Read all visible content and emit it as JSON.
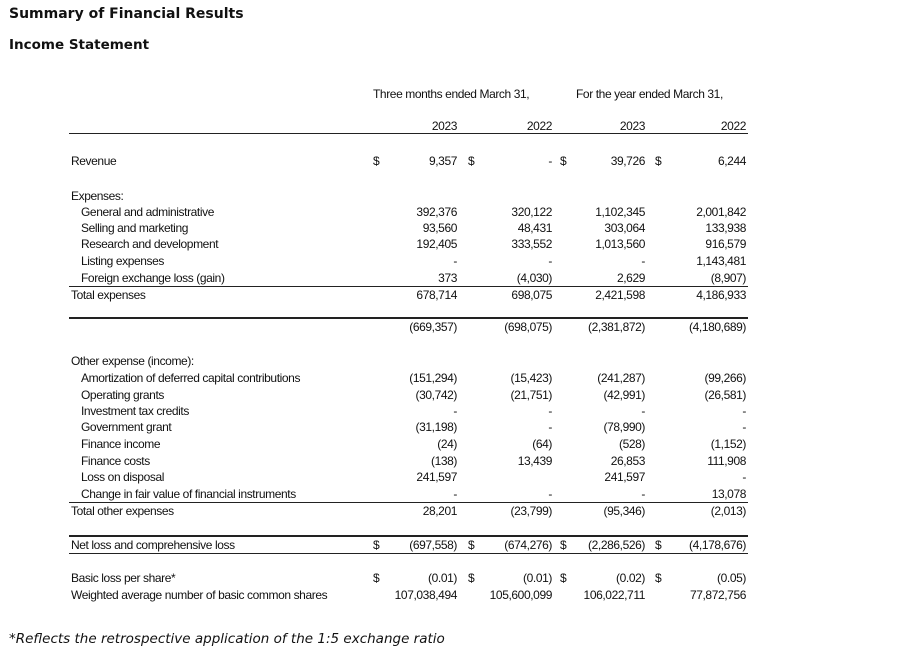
{
  "title": "Summary of Financial Results",
  "subtitle": "Income Statement",
  "footnote": "*Reflects the retrospective application of the 1:5 exchange ratio",
  "headers": {
    "group1": "Three months ended March 31,",
    "group2": "For the year ended March 31,",
    "years": [
      "2023",
      "2022",
      "2023",
      "2022"
    ]
  },
  "rows": [
    {
      "label": "Revenue",
      "indent": false,
      "dollar": true,
      "values": [
        "9,357",
        "-",
        "39,726",
        "6,244"
      ]
    },
    {
      "label": "Expenses:",
      "indent": false,
      "dollar": false,
      "values": []
    },
    {
      "label": "General and administrative",
      "indent": true,
      "dollar": false,
      "values": [
        "392,376",
        "320,122",
        "1,102,345",
        "2,001,842"
      ]
    },
    {
      "label": "Selling and marketing",
      "indent": true,
      "dollar": false,
      "values": [
        "93,560",
        "48,431",
        "303,064",
        "133,938"
      ]
    },
    {
      "label": "Research and development",
      "indent": true,
      "dollar": false,
      "values": [
        "192,405",
        "333,552",
        "1,013,560",
        "916,579"
      ]
    },
    {
      "label": "Listing expenses",
      "indent": true,
      "dollar": false,
      "values": [
        "-",
        "-",
        "-",
        "1,143,481"
      ]
    },
    {
      "label": "Foreign exchange loss (gain)",
      "indent": true,
      "dollar": false,
      "values": [
        "373",
        "(4,030)",
        "2,629",
        "(8,907)"
      ]
    },
    {
      "label": "Total expenses",
      "indent": false,
      "dollar": false,
      "values": [
        "678,714",
        "698,075",
        "2,421,598",
        "4,186,933"
      ]
    },
    {
      "label": "",
      "indent": false,
      "dollar": false,
      "values": [
        "(669,357)",
        "(698,075)",
        "(2,381,872)",
        "(4,180,689)"
      ]
    },
    {
      "label": "Other expense (income):",
      "indent": false,
      "dollar": false,
      "values": []
    },
    {
      "label": "Amortization of deferred capital contributions",
      "indent": true,
      "dollar": false,
      "values": [
        "(151,294)",
        "(15,423)",
        "(241,287)",
        "(99,266)"
      ]
    },
    {
      "label": "Operating grants",
      "indent": true,
      "dollar": false,
      "values": [
        "(30,742)",
        "(21,751)",
        "(42,991)",
        "(26,581)"
      ]
    },
    {
      "label": "Investment tax credits",
      "indent": true,
      "dollar": false,
      "values": [
        "-",
        "-",
        "-",
        "-"
      ]
    },
    {
      "label": "Government grant",
      "indent": true,
      "dollar": false,
      "values": [
        "(31,198)",
        "-",
        "(78,990)",
        "-"
      ]
    },
    {
      "label": "Finance income",
      "indent": true,
      "dollar": false,
      "values": [
        "(24)",
        "(64)",
        "(528)",
        "(1,152)"
      ]
    },
    {
      "label": "Finance costs",
      "indent": true,
      "dollar": false,
      "values": [
        "(138)",
        "13,439",
        "26,853",
        "111,908"
      ]
    },
    {
      "label": "Loss on disposal",
      "indent": true,
      "dollar": false,
      "values": [
        "241,597",
        "",
        "241,597",
        "-"
      ]
    },
    {
      "label": "Change in fair value of financial instruments",
      "indent": true,
      "dollar": false,
      "values": [
        "-",
        "-",
        "-",
        "13,078"
      ]
    },
    {
      "label": "Total other expenses",
      "indent": false,
      "dollar": false,
      "values": [
        "28,201",
        "(23,799)",
        "(95,346)",
        "(2,013)"
      ]
    },
    {
      "label": "Net loss and comprehensive loss",
      "indent": false,
      "dollar": true,
      "values": [
        "(697,558)",
        "(674,276)",
        "(2,286,526)",
        "(4,178,676)"
      ]
    },
    {
      "label": "Basic loss per share*",
      "indent": false,
      "dollar": true,
      "values": [
        "(0.01)",
        "(0.01)",
        "(0.02)",
        "(0.05)"
      ]
    },
    {
      "label": "Weighted average number of basic common shares",
      "indent": false,
      "dollar": false,
      "values": [
        "107,038,494",
        "105,600,099",
        "106,022,711",
        "77,872,756"
      ]
    }
  ],
  "currency_symbol": "$"
}
